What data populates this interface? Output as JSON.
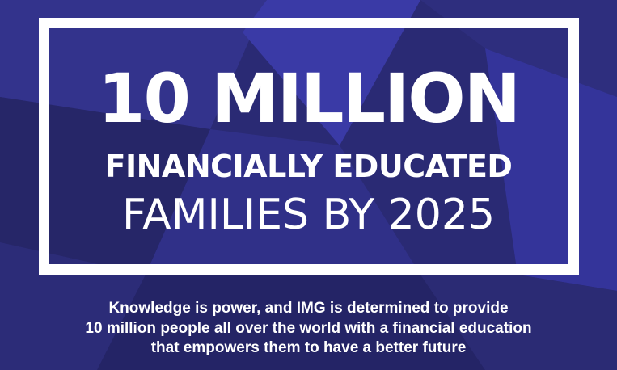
{
  "banner": {
    "headline_line1": "10 MILLION",
    "headline_line2": "FINANCIALLY EDUCATED",
    "headline_line3": "FAMILIES BY 2025"
  },
  "tagline": {
    "lines": [
      "Knowledge is power, and IMG is determined to provide",
      "10 million people all over the world with a financial education",
      "that empowers them to have a better future"
    ]
  },
  "colors": {
    "background": "#2a2a7a",
    "accent_shape": "#3a3aa8",
    "text": "#ffffff"
  }
}
